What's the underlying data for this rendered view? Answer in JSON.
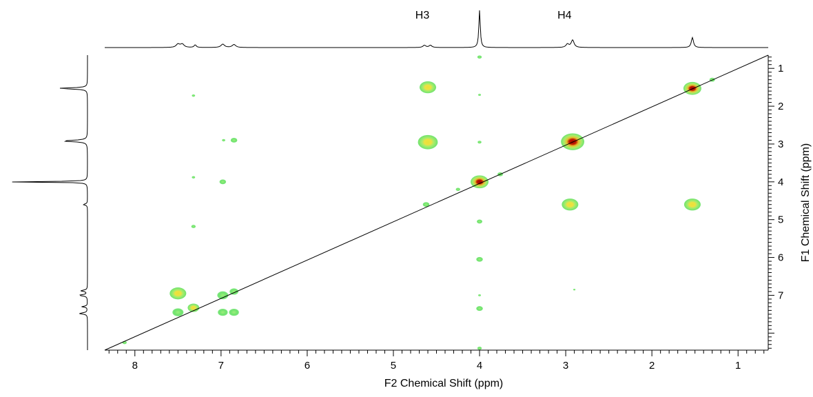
{
  "chart_data": {
    "type": "heatmap",
    "title": "",
    "xlabel": "F2 Chemical Shift (ppm)",
    "ylabel": "F1 Chemical Shift (ppm)",
    "xlim": [
      8.35,
      0.65
    ],
    "ylim": [
      0.65,
      8.45
    ],
    "x_ticks": [
      8,
      7,
      6,
      5,
      4,
      3,
      2,
      1
    ],
    "y_ticks": [
      1,
      2,
      3,
      4,
      5,
      6,
      7
    ],
    "peak_labels": [
      {
        "text": "H3",
        "ppm": 4.6
      },
      {
        "text": "H4",
        "ppm": 2.95
      }
    ],
    "diagonal": {
      "from": [
        8.35,
        8.45
      ],
      "to": [
        0.65,
        0.65
      ]
    },
    "colors": {
      "weak": "#6fe36f",
      "medium": "#e3e03a",
      "strong": "#b30000",
      "line": "#000000"
    },
    "projection_f2": [
      {
        "ppm": 7.5,
        "height": 0.09,
        "width": 0.05
      },
      {
        "ppm": 7.45,
        "height": 0.09,
        "width": 0.05
      },
      {
        "ppm": 7.3,
        "height": 0.07,
        "width": 0.03
      },
      {
        "ppm": 6.98,
        "height": 0.09,
        "width": 0.05
      },
      {
        "ppm": 6.85,
        "height": 0.08,
        "width": 0.05
      },
      {
        "ppm": 4.64,
        "height": 0.06,
        "width": 0.04
      },
      {
        "ppm": 4.57,
        "height": 0.06,
        "width": 0.04
      },
      {
        "ppm": 4.0,
        "height": 1.0,
        "width": 0.02
      },
      {
        "ppm": 2.98,
        "height": 0.09,
        "width": 0.04
      },
      {
        "ppm": 2.92,
        "height": 0.2,
        "width": 0.04
      },
      {
        "ppm": 1.53,
        "height": 0.27,
        "width": 0.03
      }
    ],
    "projection_f1": [
      {
        "ppm": 1.53,
        "height": 0.36,
        "width": 0.035
      },
      {
        "ppm": 2.92,
        "height": 0.3,
        "width": 0.045
      },
      {
        "ppm": 4.0,
        "height": 1.0,
        "width": 0.02
      },
      {
        "ppm": 4.6,
        "height": 0.05,
        "width": 0.04
      },
      {
        "ppm": 6.88,
        "height": 0.08,
        "width": 0.04
      },
      {
        "ppm": 7.0,
        "height": 0.1,
        "width": 0.04
      },
      {
        "ppm": 7.3,
        "height": 0.07,
        "width": 0.03
      },
      {
        "ppm": 7.48,
        "height": 0.1,
        "width": 0.04
      }
    ],
    "peaks": [
      {
        "f2": 4.0,
        "f1": 4.0,
        "level": "strong",
        "size": 1.0
      },
      {
        "f2": 2.92,
        "f1": 2.94,
        "level": "strong",
        "size": 1.3
      },
      {
        "f2": 1.53,
        "f1": 1.53,
        "level": "strong",
        "size": 1.0
      },
      {
        "f2": 4.6,
        "f1": 2.95,
        "level": "medium",
        "size": 1.2
      },
      {
        "f2": 4.6,
        "f1": 1.5,
        "level": "medium",
        "size": 1.0
      },
      {
        "f2": 2.95,
        "f1": 4.6,
        "level": "medium",
        "size": 1.0
      },
      {
        "f2": 1.53,
        "f1": 4.6,
        "level": "medium",
        "size": 1.0
      },
      {
        "f2": 7.5,
        "f1": 6.95,
        "level": "medium",
        "size": 1.0
      },
      {
        "f2": 7.5,
        "f1": 7.45,
        "level": "weak",
        "size": 1.0
      },
      {
        "f2": 7.32,
        "f1": 7.33,
        "level": "medium",
        "size": 0.7
      },
      {
        "f2": 6.98,
        "f1": 7.0,
        "level": "weak",
        "size": 1.0
      },
      {
        "f2": 6.85,
        "f1": 6.9,
        "level": "weak",
        "size": 0.8
      },
      {
        "f2": 6.98,
        "f1": 7.45,
        "level": "weak",
        "size": 0.9
      },
      {
        "f2": 6.85,
        "f1": 7.45,
        "level": "weak",
        "size": 0.9
      },
      {
        "f2": 6.85,
        "f1": 2.9,
        "level": "weak",
        "size": 0.6
      },
      {
        "f2": 6.97,
        "f1": 2.9,
        "level": "weak",
        "size": 0.3
      },
      {
        "f2": 6.98,
        "f1": 4.0,
        "level": "weak",
        "size": 0.6
      },
      {
        "f2": 4.62,
        "f1": 4.6,
        "level": "weak",
        "size": 0.6
      },
      {
        "f2": 4.25,
        "f1": 4.2,
        "level": "weak",
        "size": 0.4
      },
      {
        "f2": 3.76,
        "f1": 3.8,
        "level": "weak",
        "size": 0.5
      },
      {
        "f2": 4.0,
        "f1": 5.05,
        "level": "weak",
        "size": 0.5
      },
      {
        "f2": 4.0,
        "f1": 6.05,
        "level": "weak",
        "size": 0.6
      },
      {
        "f2": 4.0,
        "f1": 7.35,
        "level": "weak",
        "size": 0.6
      },
      {
        "f2": 4.0,
        "f1": 2.95,
        "level": "weak",
        "size": 0.35
      },
      {
        "f2": 4.0,
        "f1": 1.7,
        "level": "weak",
        "size": 0.25
      },
      {
        "f2": 4.0,
        "f1": 7.0,
        "level": "weak",
        "size": 0.25
      },
      {
        "f2": 4.0,
        "f1": 0.7,
        "level": "weak",
        "size": 0.4
      },
      {
        "f2": 4.0,
        "f1": 8.4,
        "level": "weak",
        "size": 0.4
      },
      {
        "f2": 7.32,
        "f1": 1.72,
        "level": "weak",
        "size": 0.3
      },
      {
        "f2": 7.32,
        "f1": 3.88,
        "level": "weak",
        "size": 0.3
      },
      {
        "f2": 7.32,
        "f1": 5.18,
        "level": "weak",
        "size": 0.4
      },
      {
        "f2": 8.12,
        "f1": 8.25,
        "level": "weak",
        "size": 0.4
      },
      {
        "f2": 1.3,
        "f1": 1.3,
        "level": "weak",
        "size": 0.5
      },
      {
        "f2": 2.9,
        "f1": 6.85,
        "level": "weak",
        "size": 0.2
      }
    ]
  }
}
